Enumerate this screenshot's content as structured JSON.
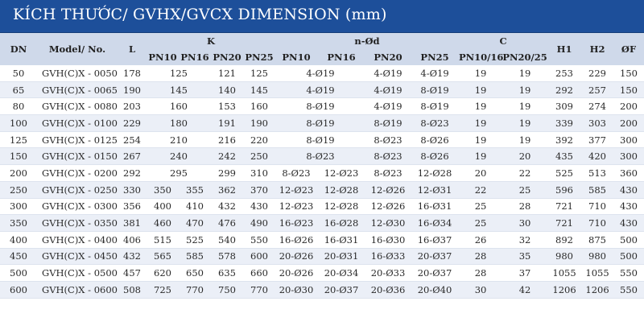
{
  "title": "KÍCH THƯỚC/ GVHX/GVCX DIMENSION (mm)",
  "colors": {
    "title_bg": "#1d4f9a",
    "header_bg": "#cfd9ea",
    "row_alt": "#ebeff7"
  },
  "headers": {
    "dn": "DN",
    "model": "Model/ No.",
    "l": "L",
    "k": "K",
    "nod": "n-Ød",
    "c": "C",
    "h1": "H1",
    "h2": "H2",
    "of": "ØF",
    "k_pn10": "PN10",
    "k_pn16": "PN16",
    "k_pn20": "PN20",
    "k_pn25": "PN25",
    "n_pn10": "PN10",
    "n_pn16": "PN16",
    "n_pn20": "PN20",
    "n_pn25": "PN25",
    "c_pn1016": "PN10/16",
    "c_pn2025": "PN20/25"
  },
  "rows": [
    {
      "dn": "50",
      "model": "GVH(C)X - 0050",
      "l": "178",
      "k1016": "125",
      "k20": "121",
      "k25": "125",
      "n1016": "4-Ø19",
      "n20": "4-Ø19",
      "n25": "4-Ø19",
      "c1016": "19",
      "c2025": "19",
      "h1": "253",
      "h2": "229",
      "of": "150"
    },
    {
      "dn": "65",
      "model": "GVH(C)X - 0065",
      "l": "190",
      "k1016": "145",
      "k20": "140",
      "k25": "145",
      "n1016": "4-Ø19",
      "n20": "4-Ø19",
      "n25": "8-Ø19",
      "c1016": "19",
      "c2025": "19",
      "h1": "292",
      "h2": "257",
      "of": "150"
    },
    {
      "dn": "80",
      "model": "GVH(C)X - 0080",
      "l": "203",
      "k1016": "160",
      "k20": "153",
      "k25": "160",
      "n1016": "8-Ø19",
      "n20": "4-Ø19",
      "n25": "8-Ø19",
      "c1016": "19",
      "c2025": "19",
      "h1": "309",
      "h2": "274",
      "of": "200"
    },
    {
      "dn": "100",
      "model": "GVH(C)X - 0100",
      "l": "229",
      "k1016": "180",
      "k20": "191",
      "k25": "190",
      "n1016": "8-Ø19",
      "n20": "8-Ø19",
      "n25": "8-Ø23",
      "c1016": "19",
      "c2025": "19",
      "h1": "339",
      "h2": "303",
      "of": "200"
    },
    {
      "dn": "125",
      "model": "GVH(C)X - 0125",
      "l": "254",
      "k1016": "210",
      "k20": "216",
      "k25": "220",
      "n1016": "8-Ø19",
      "n20": "8-Ø23",
      "n25": "8-Ø26",
      "c1016": "19",
      "c2025": "19",
      "h1": "392",
      "h2": "377",
      "of": "300"
    },
    {
      "dn": "150",
      "model": "GVH(C)X - 0150",
      "l": "267",
      "k1016": "240",
      "k20": "242",
      "k25": "250",
      "n1016": "8-Ø23",
      "n20": "8-Ø23",
      "n25": "8-Ø26",
      "c1016": "19",
      "c2025": "20",
      "h1": "435",
      "h2": "420",
      "of": "300"
    },
    {
      "dn": "200",
      "model": "GVH(C)X - 0200",
      "l": "292",
      "k1016": "295",
      "k20": "299",
      "k25": "310",
      "n10": "8-Ø23",
      "n16": "12-Ø23",
      "n20": "8-Ø23",
      "n25": "12-Ø28",
      "c1016": "20",
      "c2025": "22",
      "h1": "525",
      "h2": "513",
      "of": "360"
    },
    {
      "dn": "250",
      "model": "GVH(C)X - 0250",
      "l": "330",
      "k10": "350",
      "k16": "355",
      "k20": "362",
      "k25": "370",
      "n10": "12-Ø23",
      "n16": "12-Ø28",
      "n20": "12-Ø26",
      "n25": "12-Ø31",
      "c1016": "22",
      "c2025": "25",
      "h1": "596",
      "h2": "585",
      "of": "430"
    },
    {
      "dn": "300",
      "model": "GVH(C)X - 0300",
      "l": "356",
      "k10": "400",
      "k16": "410",
      "k20": "432",
      "k25": "430",
      "n10": "12-Ø23",
      "n16": "12-Ø28",
      "n20": "12-Ø26",
      "n25": "16-Ø31",
      "c1016": "25",
      "c2025": "28",
      "h1": "721",
      "h2": "710",
      "of": "430"
    },
    {
      "dn": "350",
      "model": "GVH(C)X - 0350",
      "l": "381",
      "k10": "460",
      "k16": "470",
      "k20": "476",
      "k25": "490",
      "n10": "16-Ø23",
      "n16": "16-Ø28",
      "n20": "12-Ø30",
      "n25": "16-Ø34",
      "c1016": "25",
      "c2025": "30",
      "h1": "721",
      "h2": "710",
      "of": "430"
    },
    {
      "dn": "400",
      "model": "GVH(C)X - 0400",
      "l": "406",
      "k10": "515",
      "k16": "525",
      "k20": "540",
      "k25": "550",
      "n10": "16-Ø26",
      "n16": "16-Ø31",
      "n20": "16-Ø30",
      "n25": "16-Ø37",
      "c1016": "26",
      "c2025": "32",
      "h1": "892",
      "h2": "875",
      "of": "500"
    },
    {
      "dn": "450",
      "model": "GVH(C)X - 0450",
      "l": "432",
      "k10": "565",
      "k16": "585",
      "k20": "578",
      "k25": "600",
      "n10": "20-Ø26",
      "n16": "20-Ø31",
      "n20": "16-Ø33",
      "n25": "20-Ø37",
      "c1016": "28",
      "c2025": "35",
      "h1": "980",
      "h2": "980",
      "of": "500"
    },
    {
      "dn": "500",
      "model": "GVH(C)X - 0500",
      "l": "457",
      "k10": "620",
      "k16": "650",
      "k20": "635",
      "k25": "660",
      "n10": "20-Ø26",
      "n16": "20-Ø34",
      "n20": "20-Ø33",
      "n25": "20-Ø37",
      "c1016": "28",
      "c2025": "37",
      "h1": "1055",
      "h2": "1055",
      "of": "550"
    },
    {
      "dn": "600",
      "model": "GVH(C)X - 0600",
      "l": "508",
      "k10": "725",
      "k16": "770",
      "k20": "750",
      "k25": "770",
      "n10": "20-Ø30",
      "n16": "20-Ø37",
      "n20": "20-Ø36",
      "n25": "20-Ø40",
      "c1016": "30",
      "c2025": "42",
      "h1": "1206",
      "h2": "1206",
      "of": "550"
    }
  ]
}
